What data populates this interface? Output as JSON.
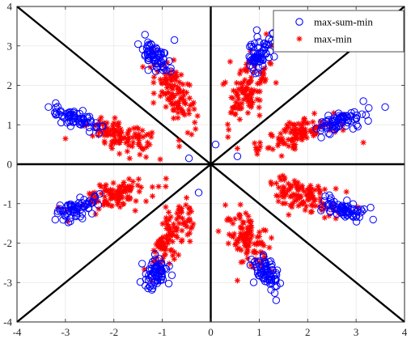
{
  "chart_data": {
    "type": "scatter",
    "title": "",
    "xlabel": "",
    "ylabel": "",
    "xlim": [
      -4,
      4
    ],
    "ylim": [
      -4,
      4
    ],
    "x_ticks": [
      -4,
      -3,
      -2,
      -1,
      0,
      1,
      2,
      3,
      4
    ],
    "y_ticks": [
      -4,
      -3,
      -2,
      -1,
      0,
      1,
      2,
      3,
      4
    ],
    "x_tick_labels": [
      "-4",
      "-3",
      "-2",
      "-1",
      "0",
      "1",
      "2",
      "3",
      "4"
    ],
    "y_tick_labels": [
      "-4",
      "-3",
      "-2",
      "-1",
      "0",
      "1",
      "2",
      "3",
      "4"
    ],
    "grid": true,
    "legend_position": "top-right",
    "reference_lines": [
      {
        "label": "x-axis",
        "from": [
          -4,
          0
        ],
        "to": [
          4,
          0
        ]
      },
      {
        "label": "y-axis",
        "from": [
          0,
          -4
        ],
        "to": [
          0,
          4
        ]
      },
      {
        "label": "diagonal",
        "from": [
          -4,
          -4
        ],
        "to": [
          4,
          4
        ]
      },
      {
        "label": "anti-diagonal",
        "from": [
          -4,
          4
        ],
        "to": [
          4,
          -4
        ]
      }
    ],
    "series": [
      {
        "name": "max-sum-min",
        "marker": "circle",
        "color": "#0000ff",
        "clusters": [
          {
            "center": [
              -1.15,
              2.75
            ],
            "spread": [
              0.13,
              0.22
            ],
            "count": 70
          },
          {
            "center": [
              1.0,
              2.75
            ],
            "spread": [
              0.13,
              0.22
            ],
            "count": 70
          },
          {
            "center": [
              2.7,
              1.1
            ],
            "spread": [
              0.25,
              0.12
            ],
            "count": 70
          },
          {
            "center": [
              -2.75,
              1.15
            ],
            "spread": [
              0.25,
              0.12
            ],
            "count": 70
          },
          {
            "center": [
              -2.8,
              -1.15
            ],
            "spread": [
              0.25,
              0.12
            ],
            "count": 70
          },
          {
            "center": [
              2.75,
              -1.15
            ],
            "spread": [
              0.25,
              0.12
            ],
            "count": 70
          },
          {
            "center": [
              -1.15,
              -2.75
            ],
            "spread": [
              0.13,
              0.22
            ],
            "count": 70
          },
          {
            "center": [
              1.15,
              -2.75
            ],
            "spread": [
              0.13,
              0.22
            ],
            "count": 70
          }
        ],
        "extra_points": [
          [
            -3.35,
            1.45
          ],
          [
            -3.2,
            1.55
          ],
          [
            3.6,
            1.45
          ],
          [
            3.15,
            1.6
          ],
          [
            3.25,
            1.1
          ],
          [
            -0.45,
            0.15
          ],
          [
            0.1,
            0.5
          ],
          [
            0.55,
            0.2
          ],
          [
            -0.25,
            -0.72
          ],
          [
            1.35,
            -3.45
          ],
          [
            -1.2,
            -3.15
          ],
          [
            -2.9,
            -1.45
          ],
          [
            3.3,
            -1.1
          ],
          [
            -0.75,
            3.15
          ],
          [
            0.95,
            3.4
          ]
        ]
      },
      {
        "name": "max-min",
        "marker": "asterisk",
        "color": "#ff0000",
        "clusters": [
          {
            "center": [
              -0.75,
              1.75
            ],
            "spread": [
              0.22,
              0.45
            ],
            "count": 110
          },
          {
            "center": [
              0.75,
              1.9
            ],
            "spread": [
              0.22,
              0.45
            ],
            "count": 110
          },
          {
            "center": [
              1.85,
              0.8
            ],
            "spread": [
              0.4,
              0.2
            ],
            "count": 110
          },
          {
            "center": [
              -1.9,
              0.75
            ],
            "spread": [
              0.4,
              0.2
            ],
            "count": 110
          },
          {
            "center": [
              -2.0,
              -0.8
            ],
            "spread": [
              0.4,
              0.2
            ],
            "count": 110
          },
          {
            "center": [
              1.9,
              -0.8
            ],
            "spread": [
              0.4,
              0.2
            ],
            "count": 110
          },
          {
            "center": [
              -0.8,
              -1.85
            ],
            "spread": [
              0.2,
              0.42
            ],
            "count": 110
          },
          {
            "center": [
              0.75,
              -1.9
            ],
            "spread": [
              0.2,
              0.42
            ],
            "count": 110
          }
        ],
        "extra_points": [
          [
            -0.65,
            0.45
          ],
          [
            0.55,
            0.4
          ],
          [
            0.4,
            2.6
          ],
          [
            -3.0,
            0.65
          ],
          [
            3.15,
            0.55
          ],
          [
            -0.5,
            -0.85
          ],
          [
            0.55,
            -2.95
          ],
          [
            -1.2,
            2.95
          ],
          [
            1.25,
            3.0
          ],
          [
            -2.95,
            -1.45
          ],
          [
            2.8,
            -0.7
          ]
        ]
      }
    ]
  }
}
